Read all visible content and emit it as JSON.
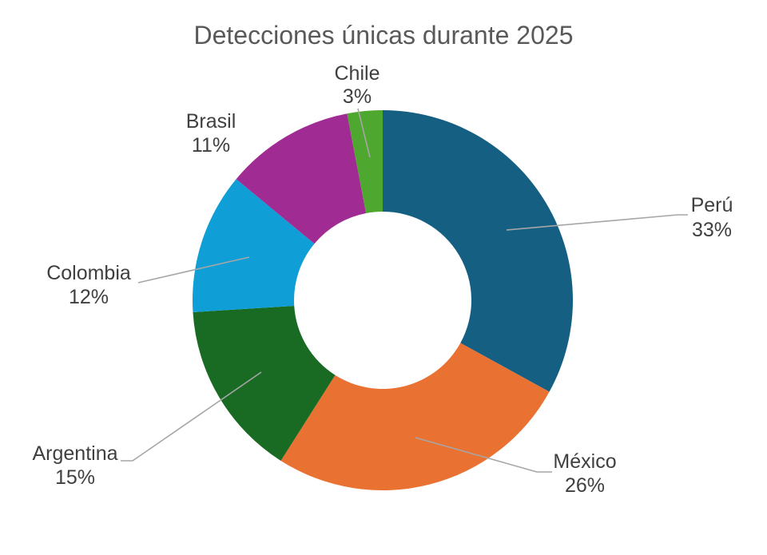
{
  "title": "Detecciones únicas durante 2025",
  "styles": {
    "background": "#FFFFFF",
    "title_color": "#595959",
    "label_color": "#3F3F3F",
    "leader_line_color": "#A6A6A6",
    "hole_color": "#FFFFFF"
  },
  "chart_data": {
    "type": "pie",
    "subtype": "donut",
    "title": "Detecciones únicas durante 2025",
    "unit": "%",
    "direction": "clockwise",
    "start_angle_deg": 0,
    "hole_ratio": 0.47,
    "legend_position": "none",
    "data_labels": "outside, category name + percentage, with leader lines",
    "categories": [
      "Perú",
      "México",
      "Argentina",
      "Colombia",
      "Brasil",
      "Chile"
    ],
    "values": [
      33,
      26,
      15,
      12,
      11,
      3
    ],
    "slices": [
      {
        "label": "Perú",
        "pct_label": "33%",
        "value": 33,
        "color": "#156082",
        "leader_line": true
      },
      {
        "label": "México",
        "pct_label": "26%",
        "value": 26,
        "color": "#E97132",
        "leader_line": true
      },
      {
        "label": "Argentina",
        "pct_label": "15%",
        "value": 15,
        "color": "#196B24",
        "leader_line": true
      },
      {
        "label": "Colombia",
        "pct_label": "12%",
        "value": 12,
        "color": "#0F9ED5",
        "leader_line": true
      },
      {
        "label": "Brasil",
        "pct_label": "11%",
        "value": 11,
        "color": "#A02B93",
        "leader_line": false
      },
      {
        "label": "Chile",
        "pct_label": "3%",
        "value": 3,
        "color": "#4EA72E",
        "leader_line": true
      }
    ]
  }
}
